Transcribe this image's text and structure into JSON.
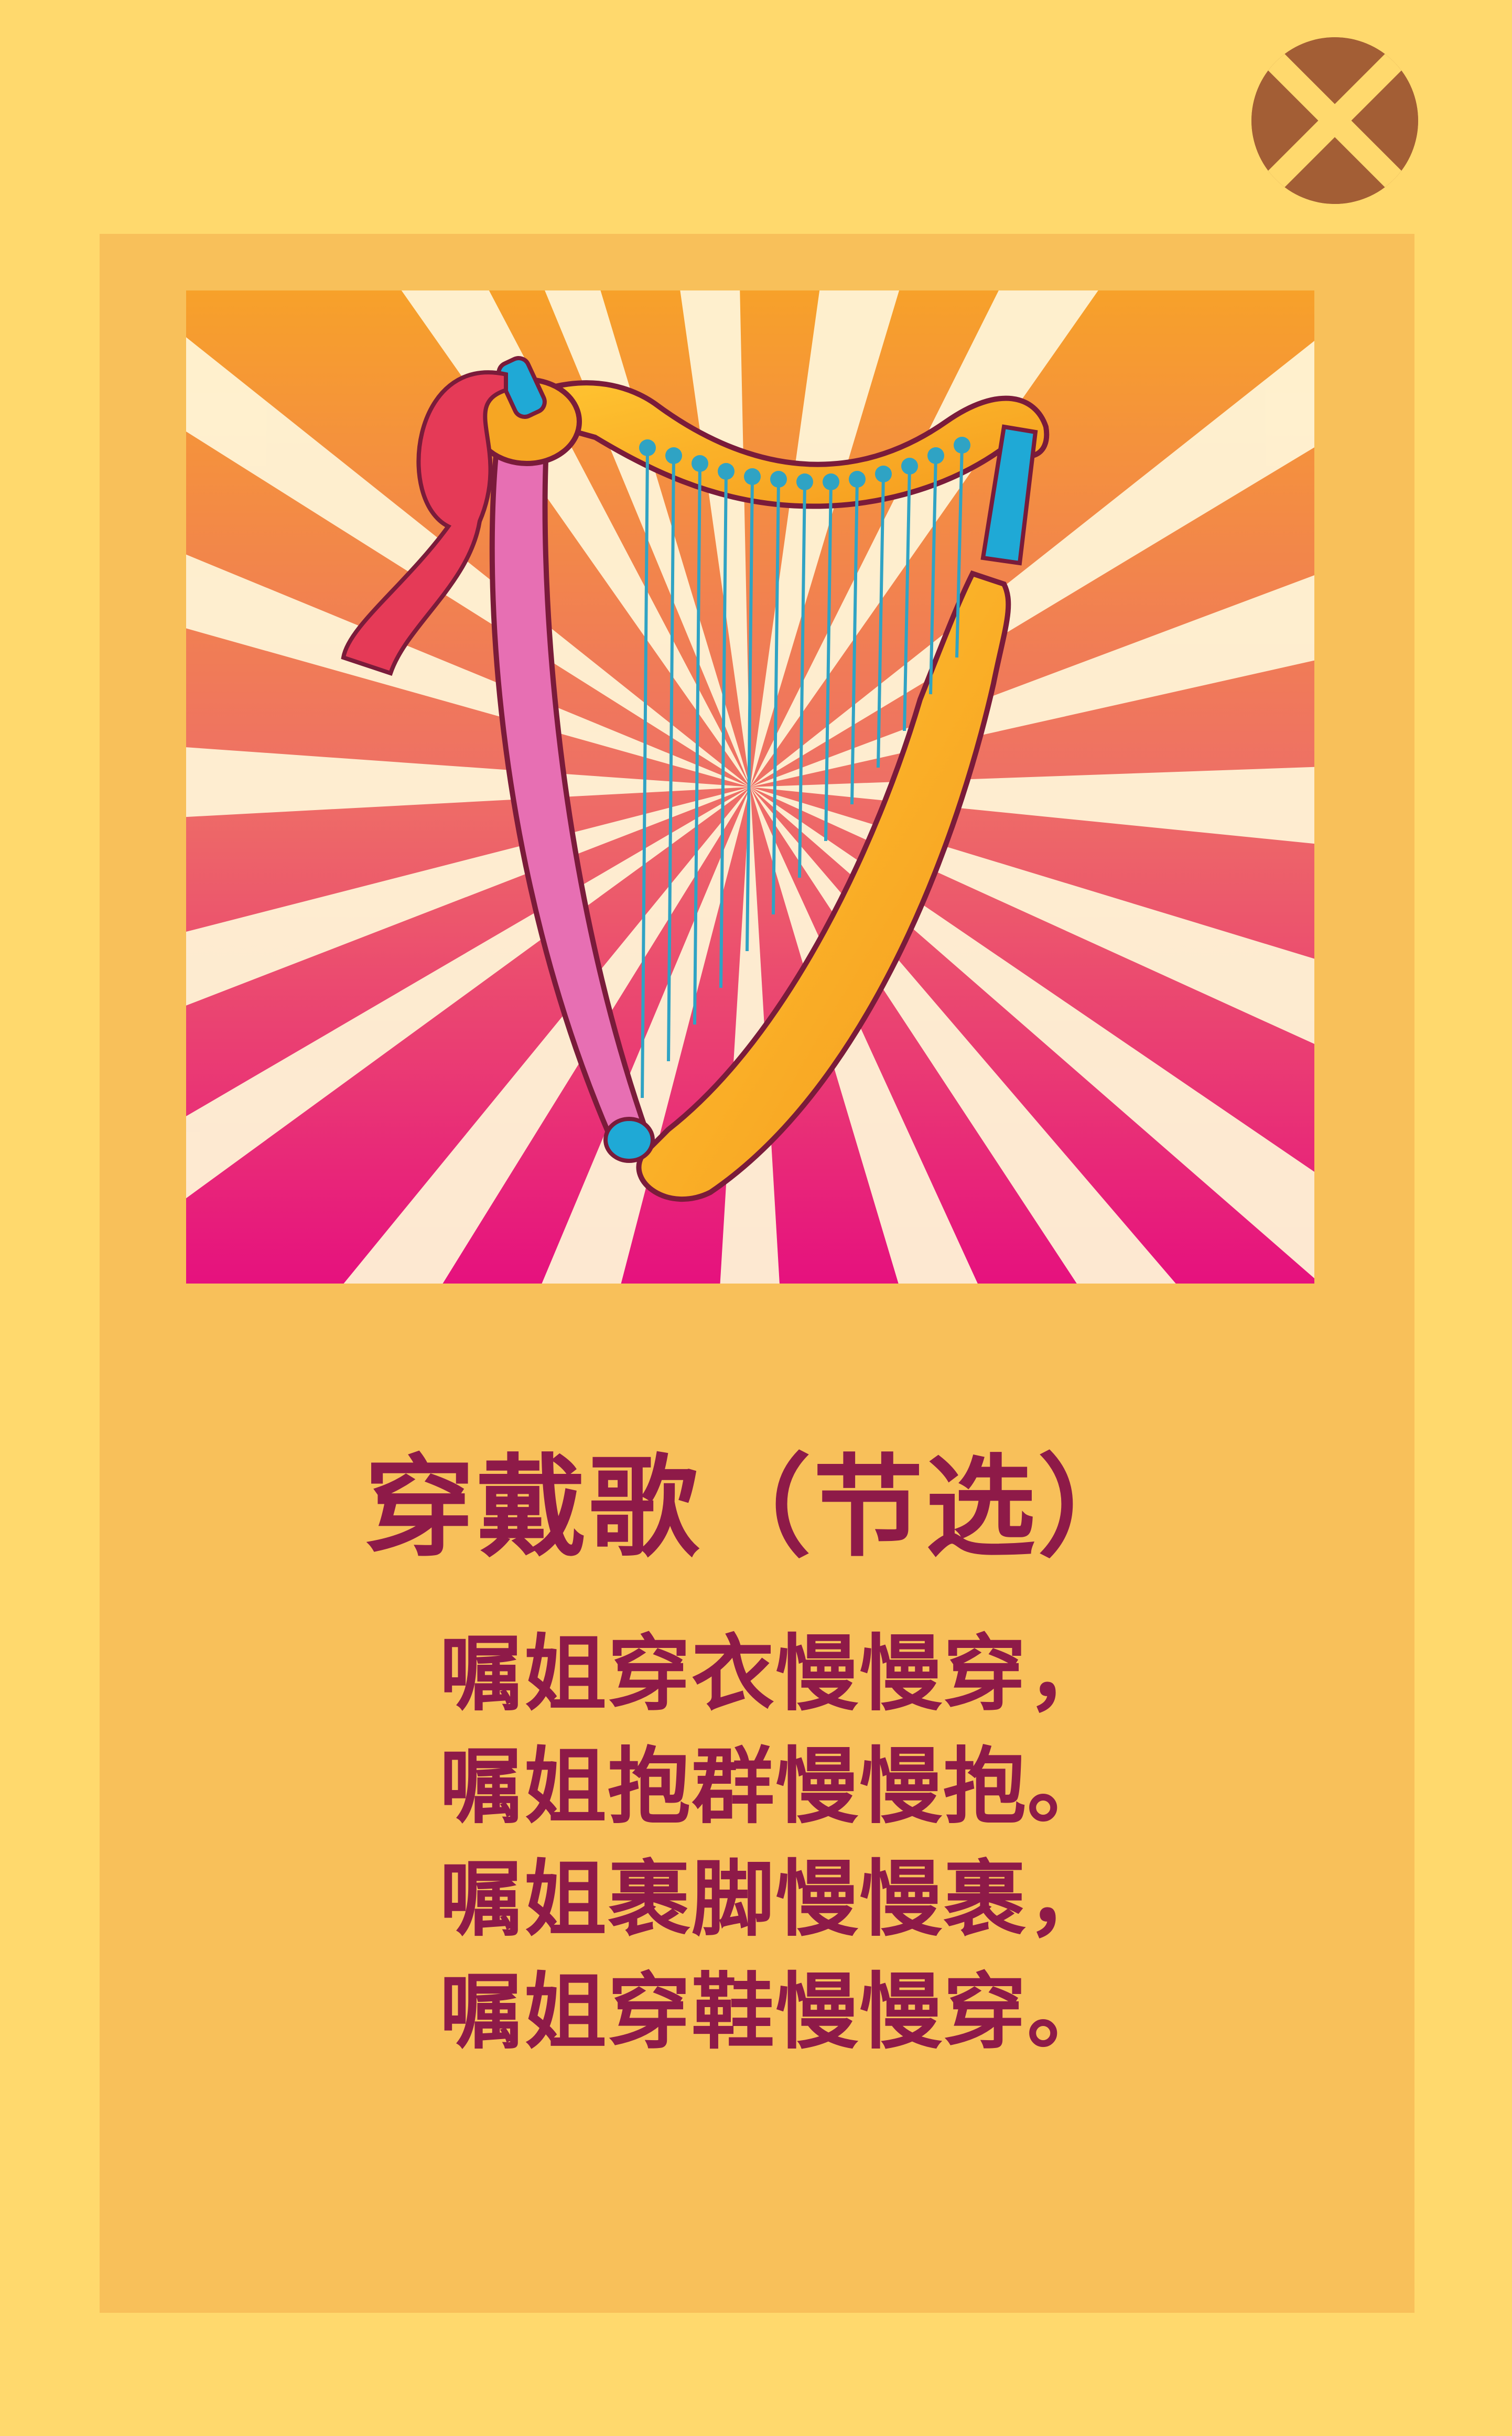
{
  "close_button": {
    "icon": "close-icon",
    "color": "#A35E35"
  },
  "card": {
    "background": "#F8C05A"
  },
  "illustration": {
    "subject": "harp-icon",
    "ray_color": "#FFF4D6",
    "gradient_top": "#F7A12A",
    "gradient_bottom": "#E6117E"
  },
  "poem": {
    "title": "穿戴歌（节选）",
    "lines": [
      "嘱姐穿衣慢慢穿，",
      "嘱姐抱群慢慢抱。",
      "嘱姐裹脚慢慢裹，",
      "嘱姐穿鞋慢慢穿。"
    ],
    "text_color": "#8E1A48"
  }
}
